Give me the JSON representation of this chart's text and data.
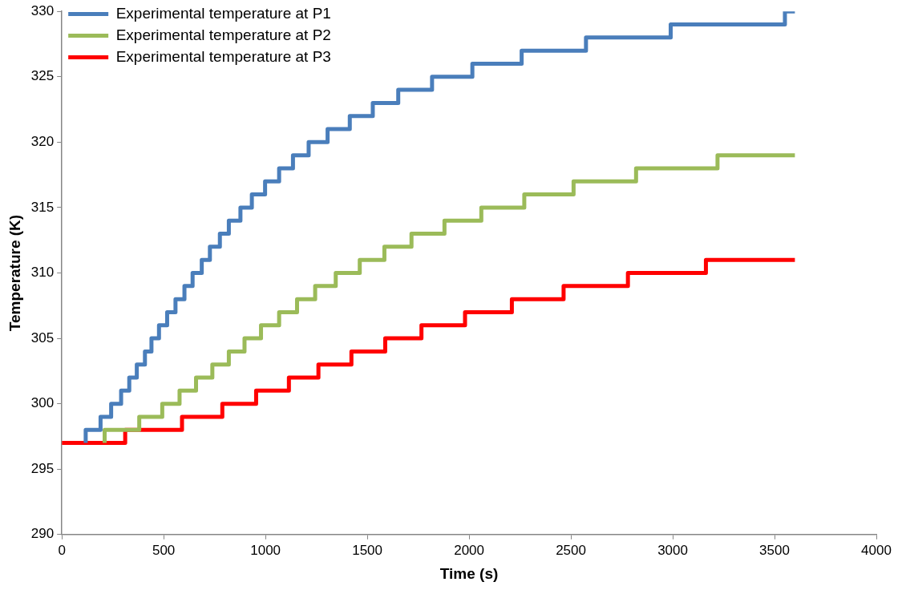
{
  "chart_data": {
    "type": "step",
    "xlabel": "Time (s)",
    "ylabel": "Temperature (K)",
    "xlim": [
      0,
      4000
    ],
    "xticks": [
      0,
      500,
      1000,
      1500,
      2000,
      2500,
      3000,
      3500,
      4000
    ],
    "ylim": [
      290,
      330
    ],
    "yticks": [
      290,
      295,
      300,
      305,
      310,
      315,
      320,
      325,
      330
    ],
    "grid": false,
    "legend": "top left",
    "marker": "none",
    "line_style": "solid",
    "series": [
      {
        "name": "Experimental temperature at P1",
        "color": "#4a7ebb",
        "x": [
          117,
          117,
          190,
          242,
          291,
          331,
          368,
          408,
          440,
          477,
          517,
          558,
          602,
          642,
          687,
          727,
          776,
          820,
          877,
          933,
          998,
          1067,
          1135,
          1212,
          1305,
          1414,
          1527,
          1652,
          1818,
          2016,
          2258,
          2574,
          2990,
          3551,
          3600
        ],
        "values": [
          297,
          298,
          299,
          300,
          301,
          302,
          303,
          304,
          305,
          306,
          307,
          308,
          309,
          310,
          311,
          312,
          313,
          314,
          315,
          316,
          317,
          318,
          319,
          320,
          321,
          322,
          323,
          324,
          325,
          326,
          327,
          328,
          329,
          330,
          330
        ]
      },
      {
        "name": "Experimental temperature at P2",
        "color": "#9bbb59",
        "x": [
          210,
          210,
          380,
          493,
          578,
          659,
          739,
          820,
          897,
          978,
          1067,
          1155,
          1244,
          1345,
          1463,
          1584,
          1717,
          1879,
          2060,
          2271,
          2513,
          2820,
          3220,
          3600
        ],
        "values": [
          297,
          298,
          299,
          300,
          301,
          302,
          303,
          304,
          305,
          306,
          307,
          308,
          309,
          310,
          311,
          312,
          313,
          314,
          315,
          316,
          317,
          318,
          319,
          319
        ]
      },
      {
        "name": "Experimental temperature at P3",
        "color": "#ff0000",
        "x": [
          0,
          311,
          590,
          788,
          954,
          1115,
          1260,
          1422,
          1588,
          1766,
          1980,
          2210,
          2464,
          2780,
          3163,
          3600
        ],
        "values": [
          297,
          298,
          299,
          300,
          301,
          302,
          303,
          304,
          305,
          306,
          307,
          308,
          309,
          310,
          311,
          311
        ]
      }
    ]
  }
}
